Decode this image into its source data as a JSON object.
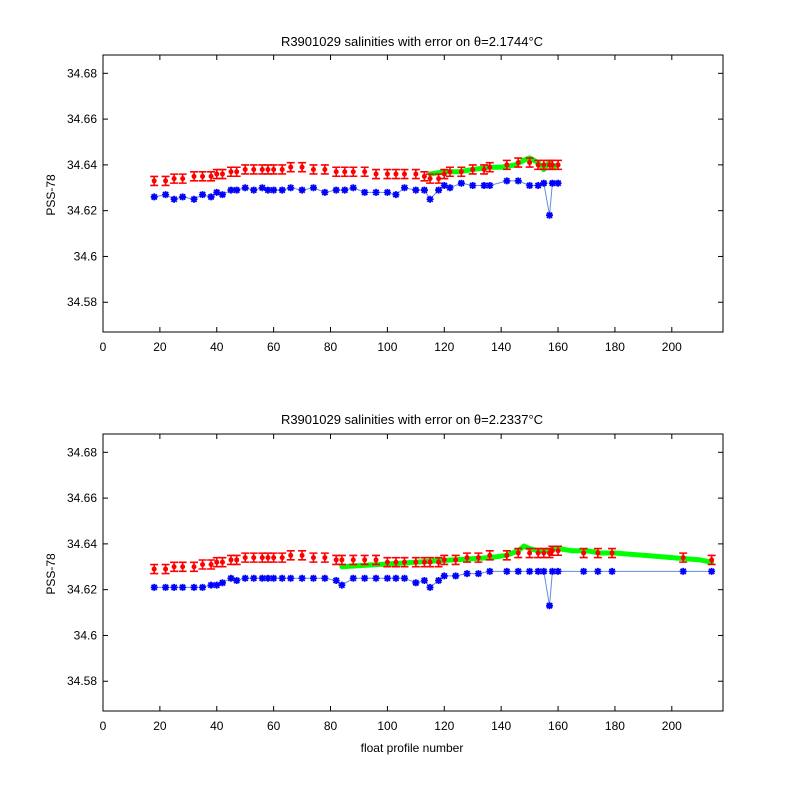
{
  "chart_data": [
    {
      "type": "scatter",
      "title_main": "R3901029 salinities with error on ",
      "title_theta": "θ=2.1744",
      "title_unit": "°C",
      "xlabel": "",
      "ylabel": "PSS-78",
      "xlim": [
        0,
        218
      ],
      "ylim": [
        34.567,
        34.688
      ],
      "xticks": [
        "0",
        "20",
        "40",
        "60",
        "80",
        "100",
        "120",
        "140",
        "160",
        "180",
        "200"
      ],
      "yticks": [
        "34.58",
        "34.6",
        "34.62",
        "34.64",
        "34.66",
        "34.68"
      ],
      "colors": {
        "float": "#0000ff",
        "mapped": "#ff0000",
        "fit": "#00ff00"
      },
      "series": [
        {
          "role": "float",
          "x": [
            18,
            22,
            25,
            28,
            32,
            35,
            38,
            40,
            42,
            45,
            47,
            50,
            53,
            56,
            58,
            60,
            63,
            66,
            70,
            74,
            78,
            82,
            85,
            88,
            92,
            96,
            100,
            103,
            106,
            110,
            113,
            115,
            118,
            120,
            122,
            126,
            130,
            134,
            136,
            142,
            146,
            150,
            153,
            155,
            157,
            158,
            160
          ],
          "values": [
            34.626,
            34.627,
            34.625,
            34.626,
            34.625,
            34.627,
            34.626,
            34.628,
            34.627,
            34.629,
            34.629,
            34.63,
            34.629,
            34.63,
            34.629,
            34.629,
            34.629,
            34.63,
            34.629,
            34.63,
            34.628,
            34.629,
            34.629,
            34.63,
            34.628,
            34.628,
            34.628,
            34.627,
            34.63,
            34.629,
            34.629,
            34.625,
            34.629,
            34.631,
            34.63,
            34.632,
            34.631,
            34.631,
            34.631,
            34.633,
            34.633,
            34.631,
            34.631,
            34.632,
            34.618,
            34.632,
            34.632
          ]
        },
        {
          "role": "mapped",
          "x": [
            18,
            22,
            25,
            28,
            32,
            35,
            38,
            40,
            42,
            45,
            47,
            50,
            53,
            56,
            58,
            60,
            63,
            66,
            70,
            74,
            78,
            82,
            85,
            88,
            92,
            96,
            100,
            103,
            106,
            110,
            113,
            115,
            118,
            120,
            122,
            126,
            130,
            134,
            136,
            142,
            146,
            150,
            153,
            155,
            157,
            158,
            160
          ],
          "values": [
            34.633,
            34.633,
            34.634,
            34.634,
            34.635,
            34.635,
            34.635,
            34.636,
            34.636,
            34.637,
            34.637,
            34.638,
            34.638,
            34.638,
            34.638,
            34.638,
            34.638,
            34.639,
            34.639,
            34.638,
            34.638,
            34.637,
            34.637,
            34.637,
            34.637,
            34.636,
            34.636,
            34.636,
            34.636,
            34.636,
            34.635,
            34.634,
            34.634,
            34.636,
            34.637,
            34.637,
            34.638,
            34.638,
            34.639,
            34.64,
            34.641,
            34.641,
            34.64,
            34.64,
            34.64,
            34.64,
            34.64
          ]
        },
        {
          "role": "fit",
          "x": [
            115,
            120,
            125,
            130,
            136,
            140,
            145,
            148,
            150,
            153,
            155,
            156,
            157,
            158,
            160
          ],
          "values": [
            34.636,
            34.637,
            34.637,
            34.638,
            34.639,
            34.639,
            34.64,
            34.642,
            34.643,
            34.641,
            34.638,
            34.64,
            34.641,
            34.639,
            34.64
          ]
        }
      ]
    },
    {
      "type": "scatter",
      "title_main": "R3901029 salinities with error on ",
      "title_theta": "θ=2.2337",
      "title_unit": "°C",
      "xlabel": "float profile number",
      "ylabel": "PSS-78",
      "xlim": [
        0,
        218
      ],
      "ylim": [
        34.567,
        34.688
      ],
      "xticks": [
        "0",
        "20",
        "40",
        "60",
        "80",
        "100",
        "120",
        "140",
        "160",
        "180",
        "200"
      ],
      "yticks": [
        "34.58",
        "34.6",
        "34.62",
        "34.64",
        "34.66",
        "34.68"
      ],
      "colors": {
        "float": "#0000ff",
        "mapped": "#ff0000",
        "fit": "#00ff00"
      },
      "series": [
        {
          "role": "float",
          "x": [
            18,
            22,
            25,
            28,
            32,
            35,
            38,
            40,
            42,
            45,
            47,
            50,
            53,
            56,
            58,
            60,
            63,
            66,
            70,
            74,
            78,
            82,
            84,
            88,
            92,
            96,
            100,
            103,
            106,
            110,
            113,
            115,
            118,
            120,
            124,
            128,
            132,
            136,
            142,
            146,
            150,
            153,
            155,
            157,
            158,
            160,
            169,
            174,
            179,
            204,
            214
          ],
          "values": [
            34.621,
            34.621,
            34.621,
            34.621,
            34.621,
            34.621,
            34.622,
            34.622,
            34.623,
            34.625,
            34.624,
            34.625,
            34.625,
            34.625,
            34.625,
            34.625,
            34.625,
            34.625,
            34.625,
            34.625,
            34.625,
            34.624,
            34.622,
            34.625,
            34.625,
            34.625,
            34.625,
            34.625,
            34.625,
            34.623,
            34.624,
            34.621,
            34.624,
            34.626,
            34.626,
            34.627,
            34.627,
            34.628,
            34.628,
            34.628,
            34.628,
            34.628,
            34.628,
            34.613,
            34.628,
            34.628,
            34.628,
            34.628,
            34.628,
            34.628,
            34.628
          ]
        },
        {
          "role": "mapped",
          "x": [
            18,
            22,
            25,
            28,
            32,
            35,
            38,
            40,
            42,
            45,
            47,
            50,
            53,
            56,
            58,
            60,
            63,
            66,
            70,
            74,
            78,
            82,
            84,
            88,
            92,
            96,
            100,
            103,
            106,
            110,
            113,
            115,
            118,
            120,
            124,
            128,
            132,
            136,
            142,
            146,
            150,
            153,
            155,
            157,
            158,
            160,
            169,
            174,
            179,
            204,
            214
          ],
          "values": [
            34.629,
            34.629,
            34.63,
            34.63,
            34.63,
            34.631,
            34.631,
            34.632,
            34.632,
            34.633,
            34.633,
            34.634,
            34.634,
            34.634,
            34.634,
            34.634,
            34.634,
            34.635,
            34.635,
            34.634,
            34.634,
            34.633,
            34.633,
            34.633,
            34.633,
            34.633,
            34.632,
            34.632,
            34.632,
            34.632,
            34.632,
            34.632,
            34.632,
            34.633,
            34.633,
            34.634,
            34.634,
            34.635,
            34.635,
            34.636,
            34.636,
            34.636,
            34.636,
            34.636,
            34.637,
            34.637,
            34.636,
            34.636,
            34.636,
            34.634,
            34.633
          ]
        },
        {
          "role": "fit",
          "x": [
            84,
            136,
            142,
            146,
            148,
            150,
            153,
            155,
            157,
            158,
            160,
            165,
            170,
            175,
            180,
            190,
            200,
            210,
            214
          ],
          "values": [
            34.63,
            34.634,
            34.635,
            34.637,
            34.639,
            34.638,
            34.637,
            34.637,
            34.637,
            34.638,
            34.638,
            34.637,
            34.637,
            34.636,
            34.636,
            34.635,
            34.634,
            34.633,
            34.632
          ]
        }
      ]
    }
  ]
}
